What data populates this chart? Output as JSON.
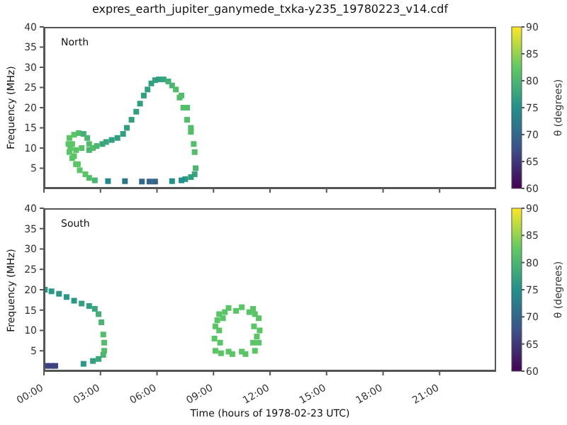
{
  "chart_data": [
    {
      "type": "scatter",
      "title": "expres_earth_jupiter_ganymede_txka-y235_19780223_v14.cdf",
      "ylabel": "Frequency (MHz)",
      "annotations": [
        "North"
      ],
      "marker": "square",
      "tick_labels": "y",
      "xlim": [
        0,
        24
      ],
      "xticks": [
        0,
        3,
        6,
        9,
        12,
        15,
        18,
        21
      ],
      "ylim": [
        0,
        40
      ],
      "yticks": [
        5,
        10,
        15,
        20,
        25,
        30,
        35,
        40
      ],
      "clim": [
        60,
        90
      ],
      "cticks": [
        60,
        65,
        70,
        75,
        80,
        85,
        90
      ],
      "clabel": "θ (degrees)",
      "series": [
        {
          "x": [
            2.7,
            2.4,
            2.2,
            1.9,
            1.7,
            1.5,
            1.35,
            1.3,
            1.35,
            1.6,
            1.85,
            2.1,
            2.3,
            2.4,
            2.4,
            2.6,
            2.8,
            3.1,
            3.3,
            3.6,
            3.9,
            4.2,
            4.4,
            4.65,
            4.9,
            5.1,
            5.3,
            5.5,
            5.7,
            5.9,
            6.1,
            6.35,
            6.6,
            6.8,
            7.0,
            7.2,
            7.4,
            7.6,
            7.8,
            7.95,
            8.0,
            8.05,
            8.0,
            7.8,
            7.5,
            7.3,
            6.8,
            5.9,
            5.6,
            5.2,
            4.3,
            3.4,
            1.6,
            1.8,
            1.5,
            2.0,
            1.4,
            1.7,
            7.8,
            7.6,
            7.3
          ],
          "values": [
            2,
            2.6,
            3.5,
            4.5,
            6,
            7.5,
            9,
            11,
            12.5,
            13.3,
            13.7,
            13.5,
            12.5,
            11,
            9.5,
            10,
            10.5,
            11,
            11.5,
            12,
            12.5,
            13.5,
            15,
            17,
            19,
            21,
            23,
            24.5,
            26,
            26.8,
            27,
            27,
            26.5,
            25.5,
            24.5,
            22.5,
            20,
            17,
            14,
            11,
            9,
            5,
            3.5,
            2.8,
            2.3,
            2,
            1.8,
            1.7,
            1.7,
            1.7,
            1.8,
            1.8,
            8,
            6,
            11,
            10,
            10,
            9.5,
            15,
            20,
            23
          ],
          "cvalues": [
            80,
            81,
            82,
            82,
            82,
            82,
            82,
            82,
            82,
            82,
            81,
            79,
            80,
            81,
            80,
            81,
            80,
            78,
            78,
            77,
            77,
            77,
            77,
            77,
            77,
            77,
            77,
            77,
            77,
            77,
            77,
            78,
            79,
            80,
            81,
            81,
            81,
            81,
            81,
            81,
            81,
            80,
            78,
            77,
            76,
            75,
            75,
            70,
            70,
            70,
            72,
            74,
            82,
            82,
            82,
            82,
            82,
            82,
            81,
            81,
            81
          ]
        }
      ]
    },
    {
      "type": "scatter",
      "xlabel": "Time (hours of 1978-02-23 UTC)",
      "ylabel": "Frequency (MHz)",
      "annotations": [
        "South"
      ],
      "marker": "square",
      "xlim": [
        0,
        24
      ],
      "xticks": [
        {
          "value": 0,
          "label": "00:00"
        },
        {
          "value": 3,
          "label": "03:00"
        },
        {
          "value": 6,
          "label": "06:00"
        },
        {
          "value": 9,
          "label": "09:00"
        },
        {
          "value": 12,
          "label": "12:00"
        },
        {
          "value": 15,
          "label": "15:00"
        },
        {
          "value": 18,
          "label": "18:00"
        },
        {
          "value": 21,
          "label": "21:00"
        }
      ],
      "ylim": [
        0,
        40
      ],
      "yticks": [
        5,
        10,
        15,
        20,
        25,
        30,
        35,
        40
      ],
      "clim": [
        60,
        90
      ],
      "cticks": [
        60,
        65,
        70,
        75,
        80,
        85,
        90
      ],
      "clabel": "θ (degrees)",
      "series": [
        {
          "x": [
            0.05,
            0.4,
            0.8,
            1.2,
            1.6,
            2.0,
            2.4,
            2.7,
            2.9,
            3.05,
            3.15,
            3.2,
            3.2,
            3.15,
            2.9,
            2.6,
            2.1,
            0.1,
            0.35,
            0.6,
            9.1,
            9.05,
            9.1,
            9.3,
            9.8,
            10.5,
            11.1,
            11.4,
            11.45,
            11.4,
            11.2,
            10.7,
            10.0,
            9.4,
            9.35,
            9.3,
            9.5,
            10.2,
            10.9,
            11.15,
            11.1,
            10.5,
            9.8,
            9.6,
            11.2,
            9.2,
            11.3
          ],
          "values": [
            20,
            19.6,
            19,
            18.2,
            17.3,
            16.6,
            16,
            15.3,
            14,
            12,
            9,
            7,
            5,
            4,
            3,
            2.5,
            1.8,
            1.3,
            1.3,
            1.3,
            5,
            8,
            11,
            14,
            15.5,
            15.7,
            15.3,
            13,
            10,
            7,
            5,
            4.2,
            4.2,
            4.4,
            7,
            10,
            13,
            14.8,
            14.5,
            11,
            7,
            4.8,
            4.8,
            14.5,
            14,
            12.5,
            8.5
          ],
          "cvalues": [
            76,
            76,
            76,
            76,
            76,
            77,
            77,
            78,
            79,
            80,
            81,
            81,
            81,
            80,
            78,
            77,
            76,
            66,
            66,
            66,
            82,
            82,
            82,
            82,
            82,
            82,
            82,
            82,
            82,
            82,
            82,
            82,
            82,
            82,
            82,
            82,
            82,
            82,
            82,
            82,
            82,
            82,
            82,
            82,
            82,
            82,
            82
          ]
        }
      ]
    }
  ]
}
